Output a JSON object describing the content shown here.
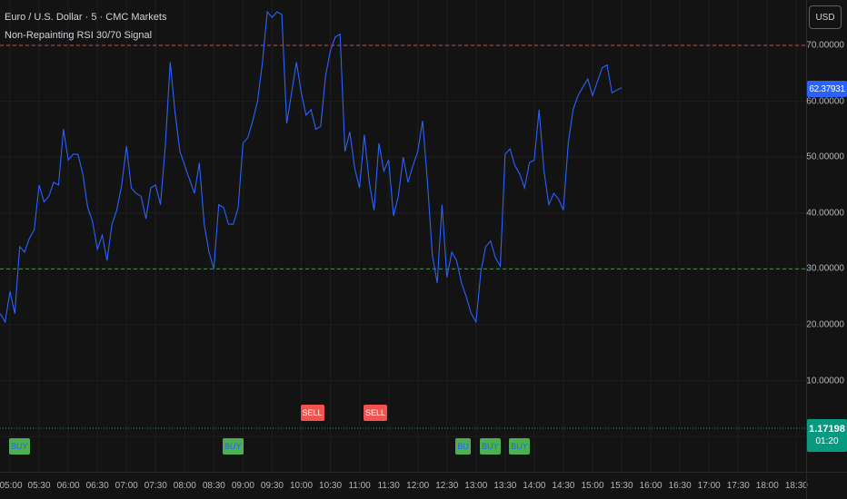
{
  "header": {
    "title": "Euro / U.S. Dollar · 5 · CMC Markets",
    "indicator": "Non-Repainting RSI 30/70 Signal"
  },
  "currency_button": "USD",
  "rsi_value_tag": "62.37931",
  "price_tag": {
    "price": "1.17198",
    "countdown": "01:20"
  },
  "colors": {
    "background": "#131313",
    "rsi_line": "#2962ff",
    "overbought_line": "#f05350",
    "oversold_line": "#4caf50",
    "price_line": "#089981",
    "buy": "#4caf50",
    "sell": "#f05350"
  },
  "signals": {
    "buy": [
      {
        "label": "BUY",
        "time_index": 0
      },
      {
        "label": "BUY",
        "time_index": 44
      },
      {
        "label": "BU",
        "time_index": 92
      },
      {
        "label": "BUY",
        "time_index": 97
      },
      {
        "label": "BUY",
        "time_index": 103
      }
    ],
    "sell": [
      {
        "label": "SELL",
        "time_index": 60
      },
      {
        "label": "SELL",
        "time_index": 73
      }
    ]
  },
  "chart_data": {
    "type": "line",
    "title": "Non-Repainting RSI 30/70 Signal",
    "xlabel": "",
    "ylabel": "",
    "ylim": [
      0,
      80
    ],
    "y_ticks": [
      "70.00000",
      "60.00000",
      "50.00000",
      "40.00000",
      "30.00000",
      "20.00000",
      "10.00000"
    ],
    "x_ticks": [
      "05:00",
      "05:30",
      "06:00",
      "06:30",
      "07:00",
      "07:30",
      "08:00",
      "08:30",
      "09:00",
      "09:30",
      "10:00",
      "10:30",
      "11:00",
      "11:30",
      "12:00",
      "12:30",
      "13:00",
      "13:30",
      "14:00",
      "14:30",
      "15:00",
      "15:30",
      "16:00",
      "16:30",
      "17:00",
      "17:30",
      "18:00",
      "18:30"
    ],
    "x_start": "05:00",
    "bar_minutes": 5,
    "reference_lines": [
      {
        "value": 70,
        "style": "dashed",
        "color": "#f05350"
      },
      {
        "value": 30,
        "style": "dashed",
        "color": "#4caf50"
      }
    ],
    "series": [
      {
        "values": [
          22,
          20.5,
          26,
          22,
          34,
          33,
          35.5,
          37,
          45,
          42,
          43,
          45.5,
          45,
          55,
          49.5,
          50.5,
          50.5,
          47,
          41,
          38.5,
          33.5,
          36,
          31.5,
          38,
          40.5,
          45,
          52,
          44.5,
          43.5,
          43,
          39,
          44.5,
          45,
          41.5,
          52,
          67,
          58,
          51,
          48.5,
          46,
          43.5,
          49,
          38,
          33,
          30,
          41.5,
          41,
          38,
          38,
          41,
          52.5,
          53.5,
          56.5,
          60,
          67,
          76,
          75,
          76,
          75.5,
          56,
          61.5,
          67,
          61.5,
          57.5,
          58.5,
          55,
          55.5,
          64.5,
          69,
          71.5,
          72,
          51,
          54.5,
          48,
          44.5,
          54,
          45.5,
          40.5,
          52.5,
          47.5,
          49.5,
          39.5,
          43,
          50,
          45.5,
          48.5,
          51,
          56.5,
          45.5,
          32.5,
          27.5,
          41.5,
          28.5,
          33,
          31.5,
          27.5,
          25,
          22,
          20.5,
          29.5,
          34,
          35,
          32,
          30.5,
          50.5,
          51.5,
          48.5,
          47,
          44.5,
          49,
          49.5,
          58.5,
          47.5,
          41.5,
          43.5,
          42.5,
          40.5,
          52.5,
          58.5,
          61,
          62.5,
          64,
          61,
          63.5,
          66,
          66.5,
          61.5,
          62,
          62.4
        ]
      }
    ]
  }
}
